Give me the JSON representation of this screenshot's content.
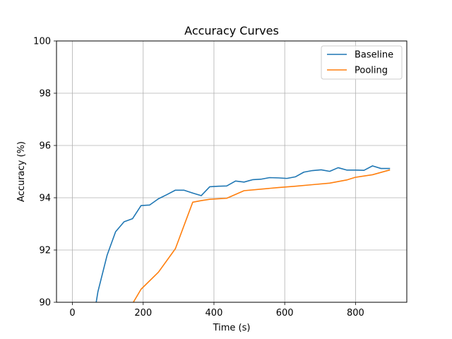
{
  "chart_data": {
    "type": "line",
    "title": "Accuracy Curves",
    "xlabel": "Time (s)",
    "ylabel": "Accuracy (%)",
    "xlim": [
      -45,
      945
    ],
    "ylim": [
      90,
      100
    ],
    "xticks": [
      0,
      200,
      400,
      600,
      800
    ],
    "yticks": [
      90,
      92,
      94,
      96,
      98,
      100
    ],
    "grid": true,
    "legend_position": "upper right",
    "series": [
      {
        "name": "Baseline",
        "color": "#1f77b4",
        "x": [
          60,
          72,
          98,
          122,
          146,
          170,
          194,
          218,
          243,
          267,
          291,
          315,
          340,
          364,
          388,
          412,
          436,
          461,
          485,
          509,
          533,
          557,
          582,
          606,
          630,
          654,
          678,
          703,
          727,
          751,
          775,
          799,
          824,
          848,
          872,
          896
        ],
        "y": [
          89.4,
          90.4,
          91.8,
          92.7,
          93.08,
          93.2,
          93.7,
          93.72,
          93.96,
          94.12,
          94.29,
          94.29,
          94.18,
          94.08,
          94.42,
          94.44,
          94.45,
          94.64,
          94.6,
          94.69,
          94.71,
          94.77,
          94.76,
          94.74,
          94.8,
          94.98,
          95.04,
          95.07,
          95.01,
          95.15,
          95.06,
          95.06,
          95.05,
          95.22,
          95.12,
          95.12
        ]
      },
      {
        "name": "Pooling",
        "color": "#ff7f0e",
        "x": [
          150,
          170,
          194,
          243,
          291,
          340,
          364,
          388,
          436,
          485,
          533,
          582,
          630,
          678,
          727,
          775,
          799,
          848,
          896
        ],
        "y": [
          89.2,
          89.95,
          90.5,
          91.15,
          92.05,
          93.83,
          93.89,
          93.94,
          93.98,
          94.27,
          94.33,
          94.39,
          94.44,
          94.5,
          94.56,
          94.68,
          94.78,
          94.88,
          95.06
        ]
      }
    ]
  }
}
